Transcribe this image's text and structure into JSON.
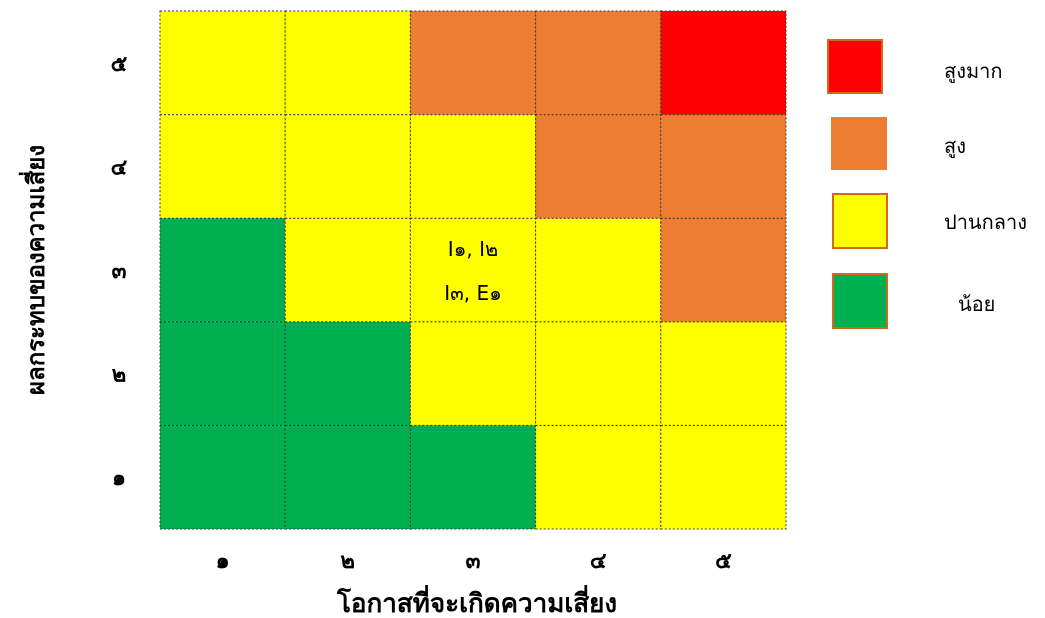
{
  "chart_data": {
    "type": "heatmap",
    "xlabel": "โอกาสที่จะเกิดความเสี่ยง",
    "ylabel": "ผลกระทบของความเสี่ยง",
    "x_ticks": [
      "๑",
      "๒",
      "๓",
      "๔",
      "๕"
    ],
    "y_ticks": [
      "๑",
      "๒",
      "๓",
      "๔",
      "๕"
    ],
    "grid": true,
    "legend_position": "right",
    "levels": {
      "very_high": {
        "label": "สูงมาก",
        "color": "#ff0000"
      },
      "high": {
        "label": "สูง",
        "color": "#ed7d31"
      },
      "medium": {
        "label": "ปานกลาง",
        "color": "#ffff00"
      },
      "low": {
        "label": "น้อย",
        "color": "#00b050"
      }
    },
    "legend_order": [
      "very_high",
      "high",
      "medium",
      "low"
    ],
    "cells": [
      [
        "low",
        "low",
        "low",
        "medium",
        "medium"
      ],
      [
        "low",
        "low",
        "medium",
        "medium",
        "medium"
      ],
      [
        "low",
        "medium",
        "medium",
        "medium",
        "high"
      ],
      [
        "medium",
        "medium",
        "medium",
        "high",
        "high"
      ],
      [
        "medium",
        "medium",
        "high",
        "high",
        "very_high"
      ]
    ],
    "annotations": [
      {
        "likelihood": 3,
        "impact": 3,
        "lines": [
          "I๑, I๒",
          "I๓, E๑"
        ]
      }
    ]
  }
}
